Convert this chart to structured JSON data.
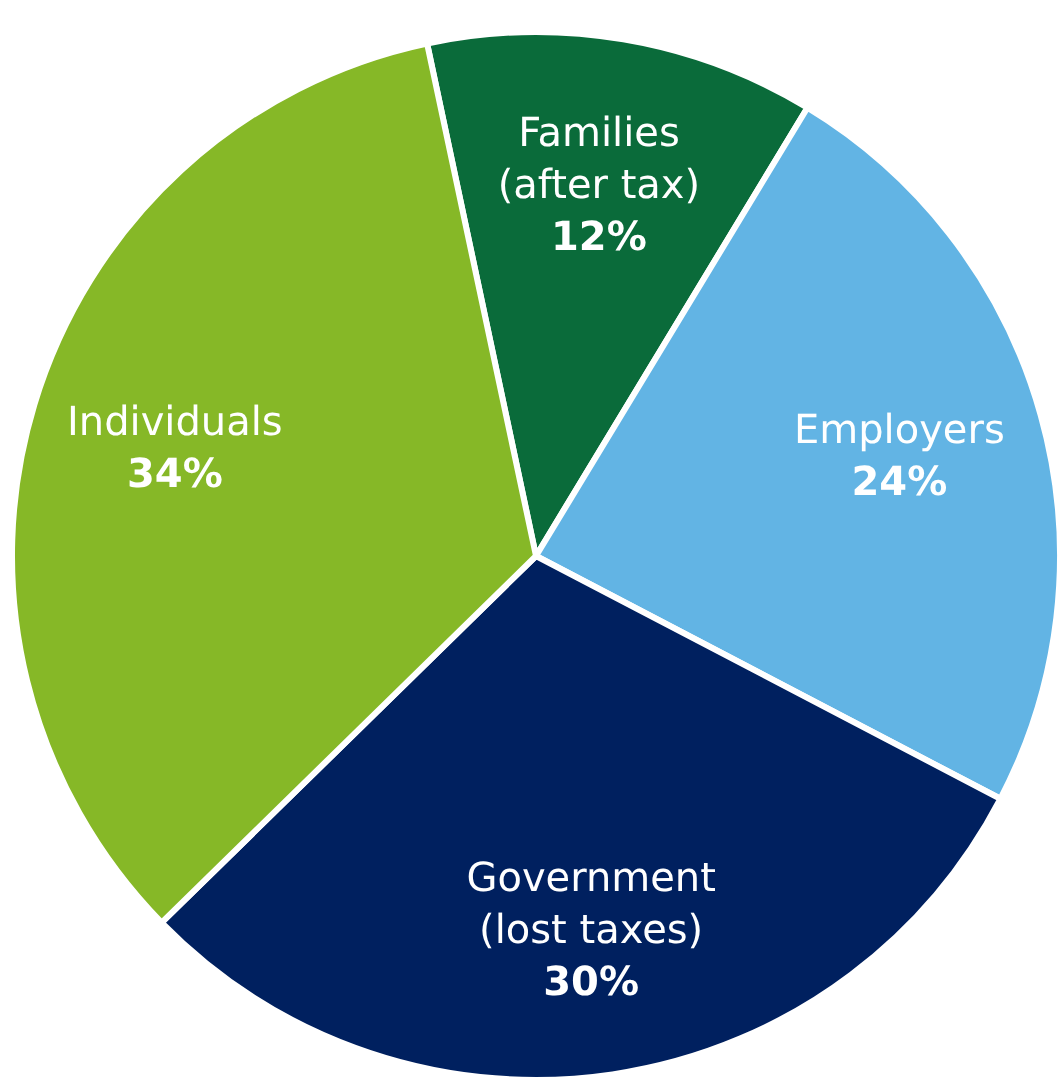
{
  "chart_data": {
    "type": "pie",
    "categories": [
      "Families (after tax)",
      "Employers",
      "Government (lost taxes)",
      "Individuals"
    ],
    "values": [
      12,
      24,
      30,
      34
    ],
    "value_labels": [
      "12%",
      "24%",
      "30%",
      "34%"
    ],
    "colors": [
      "#0a6b3a",
      "#62b4e4",
      "#00205f",
      "#86b827"
    ]
  }
}
